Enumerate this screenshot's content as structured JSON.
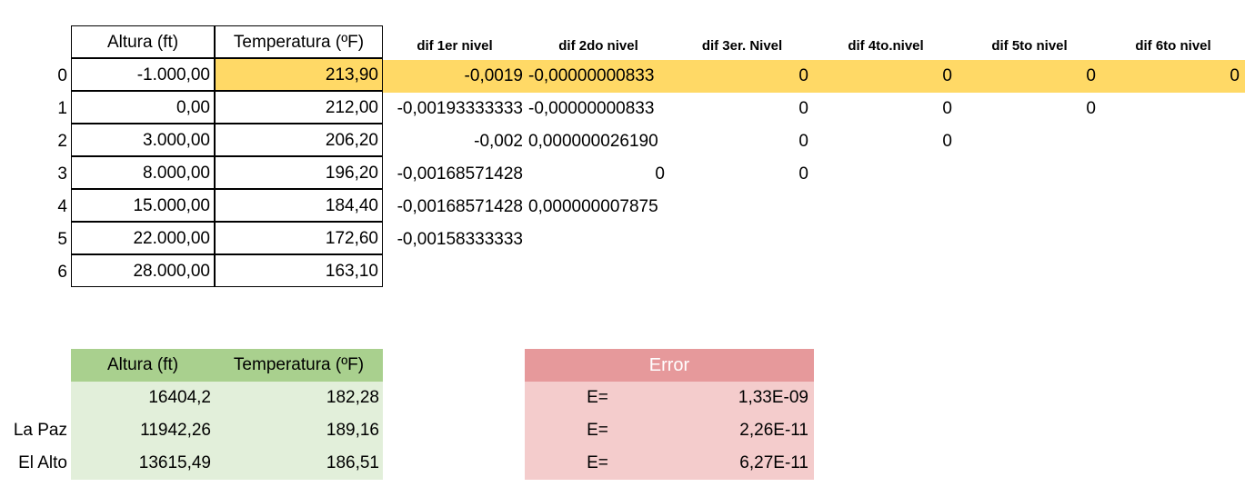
{
  "top_table": {
    "headers": [
      "Altura (ft)",
      "Temperatura (ºF)",
      "dif 1er nivel",
      "dif  2do nivel",
      "dif 3er. Nivel",
      "dif 4to.nivel",
      "dif 5to nivel",
      "dif 6to nivel"
    ],
    "index": [
      "0",
      "1",
      "2",
      "3",
      "4",
      "5",
      "6"
    ],
    "altura": [
      "-1.000,00",
      "0,00",
      "3.000,00",
      "8.000,00",
      "15.000,00",
      "22.000,00",
      "28.000,00"
    ],
    "temperatura": [
      "213,90",
      "212,00",
      "206,20",
      "196,20",
      "184,40",
      "172,60",
      "163,10"
    ],
    "dif1": [
      "-0,0019",
      "-0,00193333333",
      "-0,002",
      "-0,00168571428",
      "-0,00168571428",
      "-0,00158333333"
    ],
    "dif2": [
      "-0,00000000833",
      "-0,00000000833",
      "0,000000026190",
      "0",
      "0,000000007875"
    ],
    "dif3": [
      "0",
      "0",
      "0",
      "0"
    ],
    "dif4": [
      "0",
      "0",
      "0"
    ],
    "dif5": [
      "0",
      "0"
    ],
    "dif6": [
      "0"
    ]
  },
  "bottom_table": {
    "headers": [
      "Altura (ft)",
      "Temperatura (ºF)"
    ],
    "rows": [
      {
        "label": "",
        "altura": "16404,2",
        "temperatura": "182,28"
      },
      {
        "label": "La Paz",
        "altura": "11942,26",
        "temperatura": "189,16"
      },
      {
        "label": "El Alto",
        "altura": "13615,49",
        "temperatura": "186,51"
      }
    ]
  },
  "error_table": {
    "title": "Error",
    "rows": [
      {
        "label": "E=",
        "value": "1,33E-09"
      },
      {
        "label": "E=",
        "value": "2,26E-11"
      },
      {
        "label": "E=",
        "value": "6,27E-11"
      }
    ]
  },
  "colors": {
    "highlight": "#ffd966",
    "green_header": "#a9d08e",
    "green_body": "#e2efda",
    "red_header": "#e6999b",
    "red_body": "#f4cccc"
  }
}
